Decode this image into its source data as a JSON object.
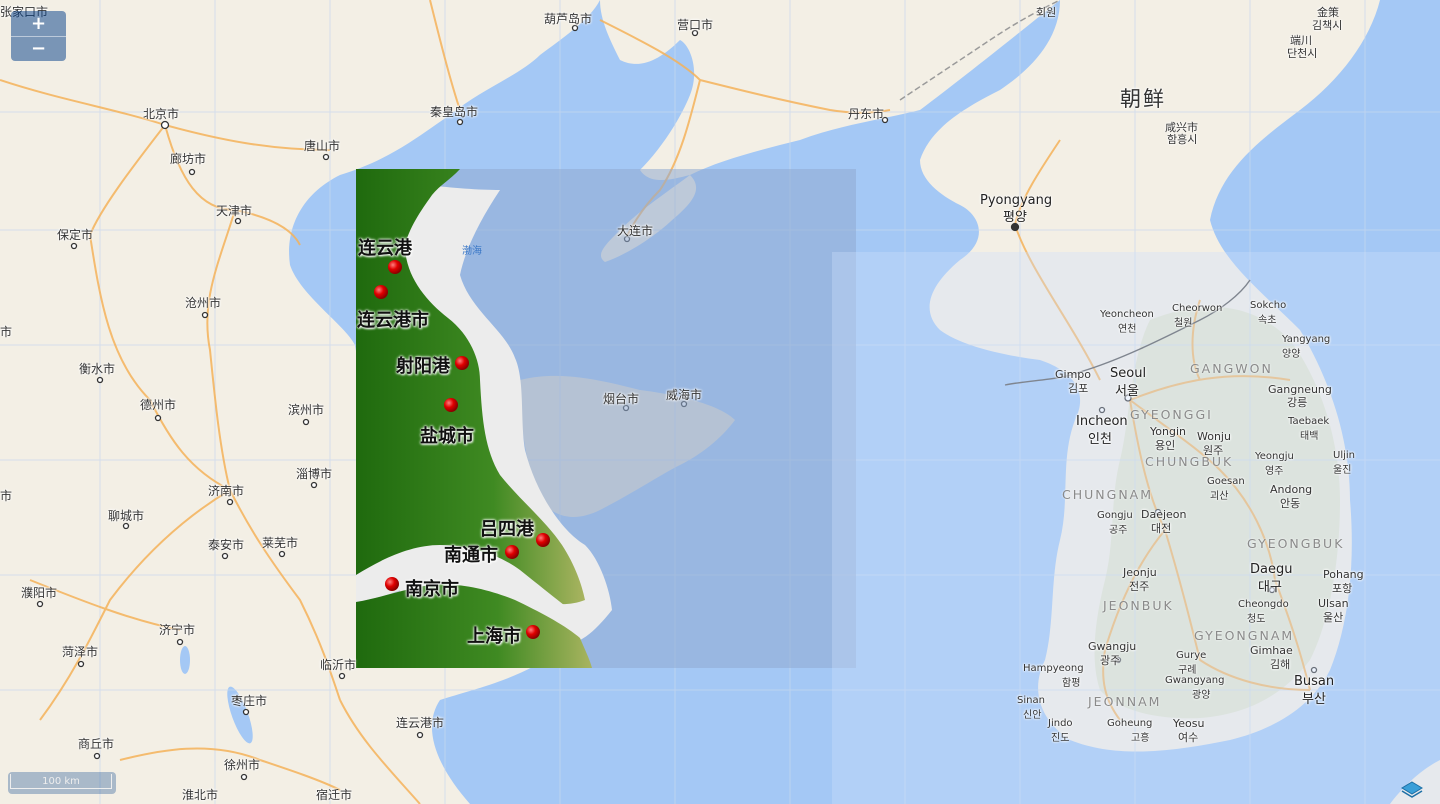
{
  "controls": {
    "zoom_in": "+",
    "zoom_out": "−",
    "scale_label": "100 km",
    "layer_icon": "layers-icon"
  },
  "map_labels": {
    "zhangjiakou": "张家口市",
    "huludao": "葫芦岛市",
    "yingkou": "营口市",
    "beijing": "北京市",
    "qinhuangdao": "秦皇岛市",
    "dandong": "丹东市",
    "langfang": "廊坊市",
    "tangshan": "唐山市",
    "tianjin": "天津市",
    "baoding": "保定市",
    "dalian": "大连市",
    "bohai": "渤海",
    "cangzhou": "沧州市",
    "hengshui": "衡水市",
    "dezhou": "德州市",
    "binzhou": "滨州市",
    "yantai": "烟台市",
    "weihai": "威海市",
    "zibo": "淄博市",
    "jinan": "济南市",
    "liaocheng": "聊城市",
    "taian": "泰安市",
    "laiwu": "莱芜市",
    "puyang": "濮阳市",
    "jining": "济宁市",
    "heze": "菏泽市",
    "linyi": "临沂市",
    "zaozhuang": "枣庄市",
    "lianyungang": "连云港市",
    "shangqiu": "商丘市",
    "xuzhou": "徐州市",
    "huaibei": "淮北市",
    "suqian": "宿迁市",
    "edge_shi_a": "市",
    "edge_shi_b": "市",
    "korea": "朝鲜",
    "huiyuan": "회원",
    "gimchaek": "김책시",
    "gimchaek_cn": "金策",
    "dancheon_cn": "端川",
    "dancheon": "단천시",
    "hamhung_cn": "咸兴市",
    "hamhung": "함흥시",
    "pyongyang": "Pyongyang",
    "pyongyang_kr": "평양",
    "sokcho": "Sokcho",
    "sokcho_kr": "속초",
    "yeoncheon": "Yeoncheon",
    "yeoncheon_kr": "연천",
    "cheorwon": "Cheorwon",
    "cheorwon_kr": "철원",
    "yangyang": "Yangyang",
    "yangyang_kr": "양양",
    "gangwon": "GANGWON",
    "gimpo": "Gimpo",
    "gimpo_kr": "김포",
    "seoul": "Seoul",
    "seoul_kr": "서울",
    "gangneung": "Gangneung",
    "gangneung_kr": "강릉",
    "gyeonggi": "GYEONGGI",
    "taebaek": "Taebaek",
    "taebaek_kr": "태백",
    "incheon": "Incheon",
    "incheon_kr": "인천",
    "yongin": "Yongin",
    "yongin_kr": "용인",
    "wonju": "Wonju",
    "wonju_kr": "원주",
    "uljin": "Uljin",
    "uljin_kr": "울진",
    "chungbuk": "CHUNGBUK",
    "yeongju": "Yeongju",
    "yeongju_kr": "영주",
    "chungnam": "CHUNGNAM",
    "goesan": "Goesan",
    "goesan_kr": "괴산",
    "andong": "Andong",
    "andong_kr": "안동",
    "gongju": "Gongju",
    "gongju_kr": "공주",
    "daejeon": "Daejeon",
    "daejeon_kr": "대전",
    "gyeongbuk": "GYEONGBUK",
    "jeonju": "Jeonju",
    "jeonju_kr": "전주",
    "daegu": "Daegu",
    "daegu_kr": "대구",
    "pohang": "Pohang",
    "pohang_kr": "포항",
    "jeonbuk": "JEONBUK",
    "cheongdo": "Cheongdo",
    "cheongdo_kr": "청도",
    "ulsan": "Ulsan",
    "ulsan_kr": "울산",
    "gyeongnam": "GYEONGNAM",
    "gwangju": "Gwangju",
    "gwangju_kr": "광주",
    "gurye": "Gurye",
    "gurye_kr": "구례",
    "gimhae": "Gimhae",
    "gimhae_kr": "김해",
    "hampyeong": "Hampyeong",
    "hampyeong_kr": "함평",
    "gwangyang": "Gwangyang",
    "gwangyang_kr": "광양",
    "busan": "Busan",
    "busan_kr": "부산",
    "jeonnam": "JEONNAM",
    "sinan": "Sinan",
    "sinan_kr": "신안",
    "jindo": "Jindo",
    "jindo_kr": "진도",
    "goheung": "Goheung",
    "goheung_kr": "고흥",
    "yeosu": "Yeosu",
    "yeosu_kr": "여수"
  },
  "overlay": {
    "ports": {
      "lianyungang_port": "连云港",
      "lianyungang_city": "连云港市",
      "sheyang_port": "射阳港",
      "yancheng_city": "盐城市",
      "lvsi_port": "吕四港",
      "nantong_city": "南通市",
      "nanjing_city": "南京市",
      "shanghai_city": "上海市"
    }
  },
  "colors": {
    "sea": "#a4c8f5",
    "land": "#f3efe5",
    "overlay_green": "#2e7d1a",
    "marker_red": "#e00000"
  }
}
